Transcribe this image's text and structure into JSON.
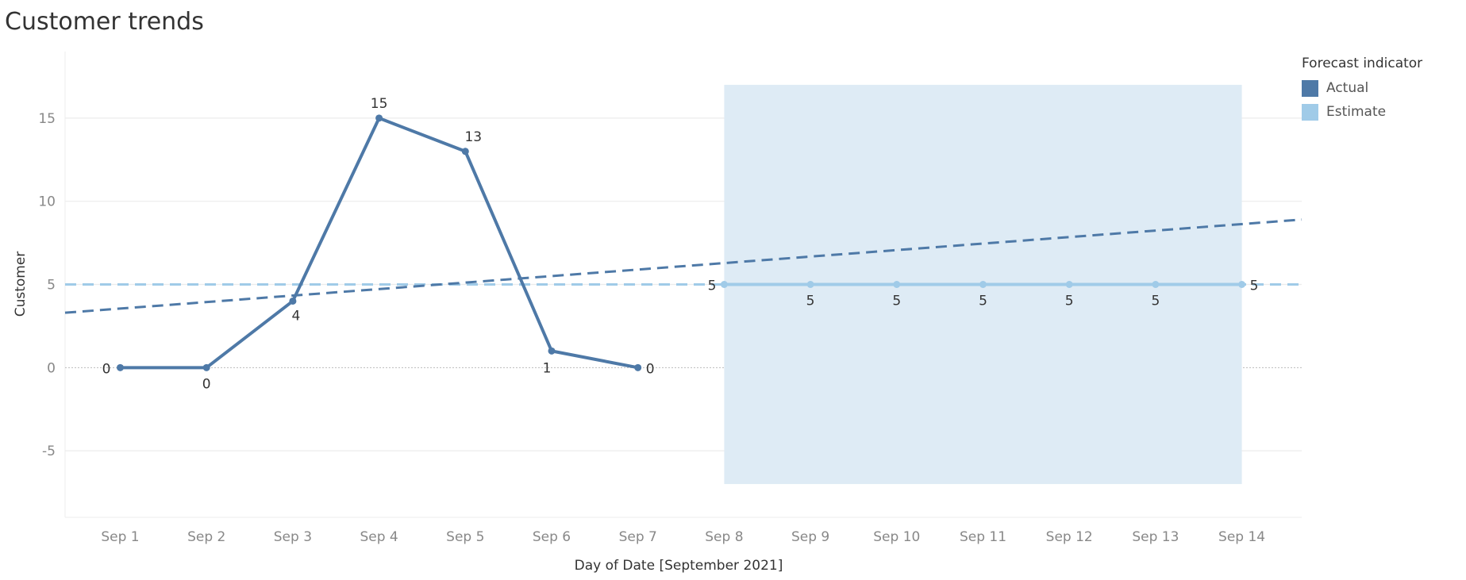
{
  "title": "Customer trends",
  "legend": {
    "title": "Forecast indicator",
    "items": [
      {
        "label": "Actual",
        "color": "#4e79a7"
      },
      {
        "label": "Estimate",
        "color": "#a0cbe8"
      }
    ]
  },
  "colors": {
    "actual": "#4e79a7",
    "estimate": "#a0cbe8",
    "forecast_band": "#deebf5",
    "grid": "#ececec",
    "zero_line": "#bbbbbb",
    "tick_text": "#888888",
    "label_text": "#333333"
  },
  "chart_data": {
    "type": "line",
    "xlabel": "Day of Date [September 2021]",
    "ylabel": "Customer",
    "categories": [
      "Sep 1",
      "Sep 2",
      "Sep 3",
      "Sep 4",
      "Sep 5",
      "Sep 6",
      "Sep 7",
      "Sep 8",
      "Sep 9",
      "Sep 10",
      "Sep 11",
      "Sep 12",
      "Sep 13",
      "Sep 14"
    ],
    "ylim": [
      -9,
      19
    ],
    "yticks": [
      -5,
      0,
      5,
      10,
      15
    ],
    "grid": true,
    "legend_position": "top-right",
    "series": [
      {
        "name": "Actual",
        "x": [
          "Sep 1",
          "Sep 2",
          "Sep 3",
          "Sep 4",
          "Sep 5",
          "Sep 6",
          "Sep 7"
        ],
        "values": [
          0,
          0,
          4,
          15,
          13,
          1,
          0
        ]
      },
      {
        "name": "Estimate",
        "x": [
          "Sep 8",
          "Sep 9",
          "Sep 10",
          "Sep 11",
          "Sep 12",
          "Sep 13",
          "Sep 14"
        ],
        "values": [
          5,
          5,
          5,
          5,
          5,
          5,
          5
        ]
      }
    ],
    "reference_lines": [
      {
        "style": "dashed",
        "color": "#a0cbe8",
        "y_start": 5,
        "y_end": 5
      },
      {
        "style": "dashed",
        "color": "#4e79a7",
        "y_start": 3.3,
        "y_end": 8.9
      }
    ],
    "forecast_band": {
      "x_from": "Sep 8",
      "x_to": "Sep 14",
      "y_from": -7,
      "y_to": 17
    }
  }
}
